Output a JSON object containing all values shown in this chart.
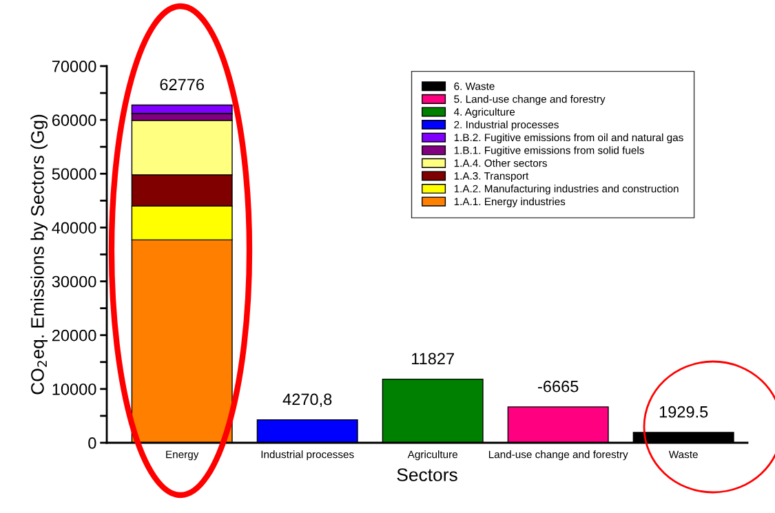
{
  "chart_data": {
    "type": "bar",
    "stacked": true,
    "xlabel": "Sectors",
    "ylabel": "CO$_{2}$eq. Emissions by Sectors (Gg)",
    "categories": [
      "Energy",
      "Industrial processes",
      "Agriculture",
      "Land-use change and forestry",
      "Waste"
    ],
    "series": [
      {
        "name": "1.A.1. Energy industries",
        "color": "#ff8000",
        "values": [
          37700,
          null,
          null,
          null,
          null
        ]
      },
      {
        "name": "1.A.2. Manufacturing industries and construction",
        "color": "#ffff00",
        "values": [
          6300,
          null,
          null,
          null,
          null
        ]
      },
      {
        "name": "1.A.3. Transport",
        "color": "#800000",
        "values": [
          5800,
          null,
          null,
          null,
          null
        ]
      },
      {
        "name": "1.A.4. Other sectors",
        "color": "#ffff80",
        "values": [
          10100,
          null,
          null,
          null,
          null
        ]
      },
      {
        "name": "1.B.1. Fugitive emissions from solid fuels",
        "color": "#800080",
        "values": [
          1300,
          null,
          null,
          null,
          null
        ]
      },
      {
        "name": "1.B.2. Fugitive emissions from oil and natural gas",
        "color": "#8000ff",
        "values": [
          1576,
          null,
          null,
          null,
          null
        ]
      },
      {
        "name": "2. Industrial processes",
        "color": "#0000ff",
        "values": [
          null,
          4270.8,
          null,
          null,
          null
        ]
      },
      {
        "name": "4. Agriculture",
        "color": "#008000",
        "values": [
          null,
          null,
          11827,
          null,
          null
        ]
      },
      {
        "name": "5. Land-use change and forestry",
        "color": "#ff0080",
        "values": [
          null,
          null,
          null,
          6665,
          null
        ]
      },
      {
        "name": "6. Waste",
        "color": "#000000",
        "values": [
          null,
          null,
          null,
          null,
          1929.5
        ]
      }
    ],
    "totals": [
      "62776",
      "4270,8",
      "11827",
      null,
      "1929.5"
    ],
    "annotations": [
      {
        "text": "-6665",
        "x": "Land-use change and forestry",
        "y": 6665
      }
    ],
    "ylim": [
      0,
      70000
    ],
    "yticks": [
      0,
      {
        "value": 5000,
        "label": null
      },
      10000,
      {
        "value": 15000,
        "label": null
      },
      20000,
      {
        "value": 25000,
        "label": null
      },
      30000,
      {
        "value": 35000,
        "label": null
      },
      40000,
      {
        "value": 45000,
        "label": null
      },
      50000,
      {
        "value": 55000,
        "label": null
      },
      60000,
      {
        "value": 65000,
        "label": null
      },
      70000
    ],
    "grid": false,
    "legend": "top right"
  }
}
